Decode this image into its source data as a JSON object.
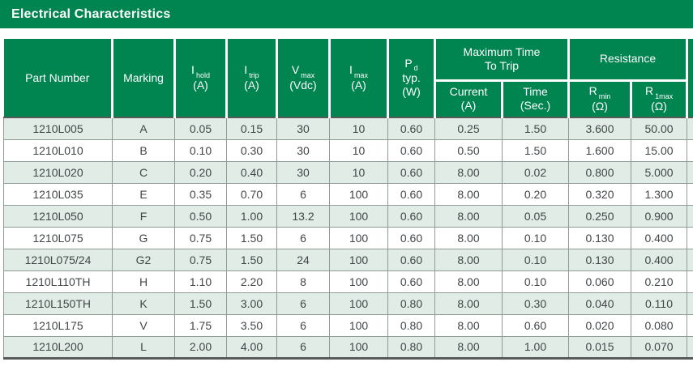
{
  "title_bar": {
    "title": "Electrical Characteristics"
  },
  "colors": {
    "brand_green": "#008450",
    "row_alt": "#e0ece5",
    "grid": "#8f9c95",
    "dark_line": "#565a59",
    "header_text": "#ffffff",
    "body_text": "#424649"
  },
  "table": {
    "column_keys": [
      "part-number",
      "marking",
      "i-hold",
      "i-trip",
      "v-max",
      "i-max",
      "p-typ",
      "trip-current",
      "trip-time",
      "r-min",
      "r-1max"
    ],
    "headers": {
      "part_number": "Part Number",
      "marking": "Marking",
      "i_hold": {
        "base": "I",
        "sub": "hold",
        "unit": "(A)"
      },
      "i_trip": {
        "base": "I",
        "sub": "trip",
        "unit": "(A)"
      },
      "v_max": {
        "base": "V",
        "sub": "max",
        "unit": "(Vdc)"
      },
      "i_max": {
        "base": "I",
        "sub": "max",
        "unit": "(A)"
      },
      "p_typ": {
        "base": "P",
        "sub": "d",
        "line2": "typ.",
        "unit": "(W)"
      },
      "trip_current": {
        "line1": "Current",
        "line2": "(A)"
      },
      "trip_time": {
        "line1": "Time",
        "line2": "(Sec.)"
      },
      "r_min": {
        "base": "R",
        "sub": "min",
        "unit": "(Ω)"
      },
      "r_1max": {
        "base": "R",
        "sub": "1max",
        "unit": "(Ω)"
      }
    },
    "groups": {
      "max_time_to_trip": {
        "line1": "Maximum Time",
        "line2": "To Trip"
      },
      "resistance": {
        "label": "Resistance"
      }
    },
    "rows": [
      [
        "1210L005",
        "A",
        "0.05",
        "0.15",
        "30",
        "10",
        "0.60",
        "0.25",
        "1.50",
        "3.600",
        "50.00"
      ],
      [
        "1210L010",
        "B",
        "0.10",
        "0.30",
        "30",
        "10",
        "0.60",
        "0.50",
        "1.50",
        "1.600",
        "15.00"
      ],
      [
        "1210L020",
        "C",
        "0.20",
        "0.40",
        "30",
        "10",
        "0.60",
        "8.00",
        "0.02",
        "0.800",
        "5.000"
      ],
      [
        "1210L035",
        "E",
        "0.35",
        "0.70",
        "6",
        "100",
        "0.60",
        "8.00",
        "0.20",
        "0.320",
        "1.300"
      ],
      [
        "1210L050",
        "F",
        "0.50",
        "1.00",
        "13.2",
        "100",
        "0.60",
        "8.00",
        "0.05",
        "0.250",
        "0.900"
      ],
      [
        "1210L075",
        "G",
        "0.75",
        "1.50",
        "6",
        "100",
        "0.60",
        "8.00",
        "0.10",
        "0.130",
        "0.400"
      ],
      [
        "1210L075/24",
        "G2",
        "0.75",
        "1.50",
        "24",
        "100",
        "0.60",
        "8.00",
        "0.10",
        "0.130",
        "0.400"
      ],
      [
        "1210L110TH",
        "H",
        "1.10",
        "2.20",
        "8",
        "100",
        "0.60",
        "8.00",
        "0.10",
        "0.060",
        "0.210"
      ],
      [
        "1210L150TH",
        "K",
        "1.50",
        "3.00",
        "6",
        "100",
        "0.80",
        "8.00",
        "0.30",
        "0.040",
        "0.110"
      ],
      [
        "1210L175",
        "V",
        "1.75",
        "3.50",
        "6",
        "100",
        "0.80",
        "8.00",
        "0.60",
        "0.020",
        "0.080"
      ],
      [
        "1210L200",
        "L",
        "2.00",
        "4.00",
        "6",
        "100",
        "0.80",
        "8.00",
        "1.00",
        "0.015",
        "0.070"
      ]
    ]
  }
}
